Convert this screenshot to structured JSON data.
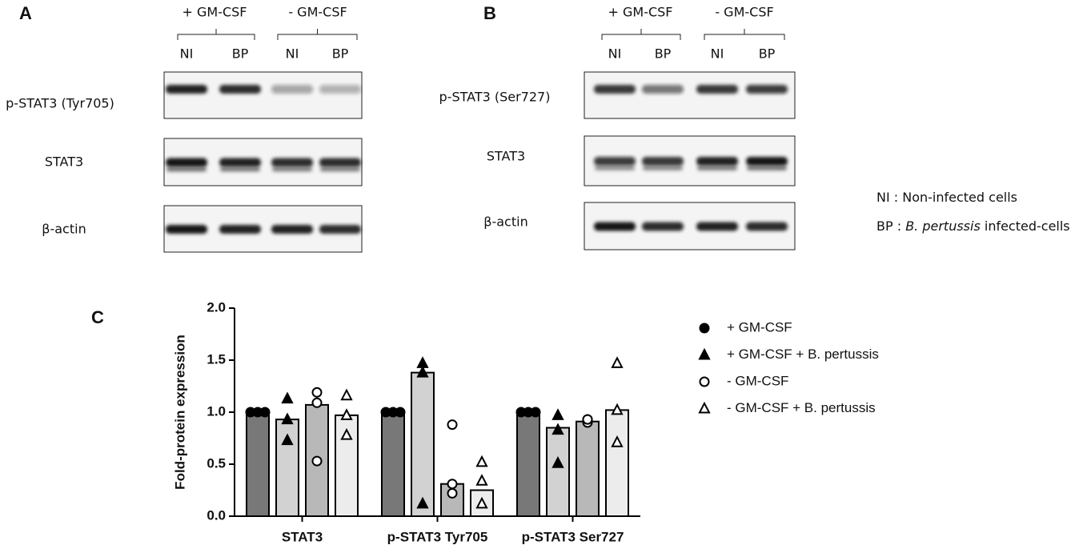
{
  "panel_a": {
    "label": "A",
    "groups": [
      "+ GM-CSF",
      "- GM-CSF"
    ],
    "lanes": [
      "NI",
      "BP",
      "NI",
      "BP"
    ],
    "rows": [
      "p-STAT3 (Tyr705)",
      "STAT3",
      "β-actin"
    ]
  },
  "panel_b": {
    "label": "B",
    "groups": [
      "+ GM-CSF",
      "- GM-CSF"
    ],
    "lanes": [
      "NI",
      "BP",
      "NI",
      "BP"
    ],
    "rows": [
      "p-STAT3 (Ser727)",
      "STAT3",
      "β-actin"
    ]
  },
  "notes": [
    [
      "NI : Non-infected cells"
    ],
    [
      "BP : ",
      "B. pertussis",
      " infected-cells"
    ]
  ],
  "chart_data": {
    "type": "bar",
    "panel_label": "C",
    "y_label": "Fold-protein expression",
    "categories": [
      "STAT3",
      "p-STAT3 Tyr705",
      "p-STAT3 Ser727"
    ],
    "ylim": [
      0,
      2
    ],
    "yticks": [
      {
        "value": 0,
        "label": "0.0"
      },
      {
        "value": 0.5,
        "label": "0.5"
      },
      {
        "value": 1,
        "label": "1.0"
      },
      {
        "value": 1.5,
        "label": "1.5"
      },
      {
        "value": 2,
        "label": "2.0"
      }
    ],
    "series": [
      {
        "name": "+ GM-CSF",
        "color": "#787878",
        "marker": "circle",
        "filled": true,
        "values": [
          1.0,
          1.0,
          1.0
        ],
        "points": [
          [
            1.0,
            1.0,
            1.0
          ],
          [
            1.0,
            1.0,
            1.0
          ],
          [
            1.0,
            1.0,
            1.0
          ]
        ]
      },
      {
        "name": "+ GM-CSF + B. pertussis",
        "color": "#d2d2d2",
        "marker": "triangle",
        "filled": true,
        "values": [
          0.93,
          1.38,
          0.85
        ],
        "points": [
          [
            1.13,
            0.93,
            0.73
          ],
          [
            1.47,
            1.38,
            0.12
          ],
          [
            0.97,
            0.83,
            0.51
          ]
        ]
      },
      {
        "name": "- GM-CSF",
        "color": "#b8b8b8",
        "marker": "circle",
        "filled": false,
        "values": [
          1.07,
          0.31,
          0.91
        ],
        "points": [
          [
            1.19,
            1.09,
            0.53
          ],
          [
            0.88,
            0.31,
            0.22
          ],
          [
            0.9,
            0.93,
            0.93
          ]
        ]
      },
      {
        "name": "- GM-CSF + B. pertussis",
        "color": "#ececec",
        "marker": "triangle",
        "filled": false,
        "values": [
          0.97,
          0.25,
          1.02
        ],
        "points": [
          [
            1.16,
            0.97,
            0.78
          ],
          [
            0.52,
            0.34,
            0.12
          ],
          [
            1.47,
            1.02,
            0.71
          ]
        ]
      }
    ]
  }
}
